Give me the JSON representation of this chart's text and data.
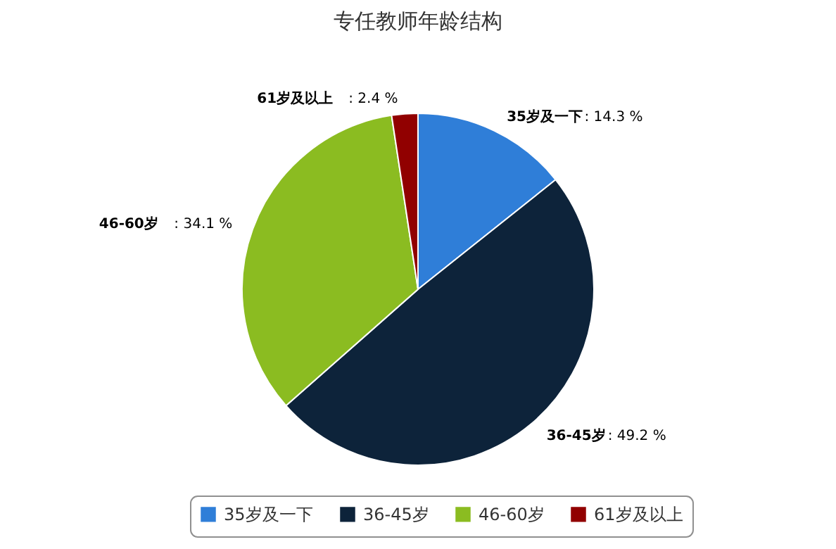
{
  "chart_data": {
    "type": "pie",
    "title": "专任教师年龄结构",
    "categories": [
      "35岁及一下",
      "36-45岁",
      "46-60岁",
      "61岁及以上"
    ],
    "values": [
      14.3,
      49.2,
      34.1,
      2.4
    ],
    "colors": [
      "#2f7ed8",
      "#0d233a",
      "#8bbc21",
      "#910000"
    ],
    "value_labels": [
      ": 14.3 %",
      ": 49.2 %",
      ": 34.1 %",
      ": 2.4 %"
    ],
    "legend": "bottom"
  }
}
